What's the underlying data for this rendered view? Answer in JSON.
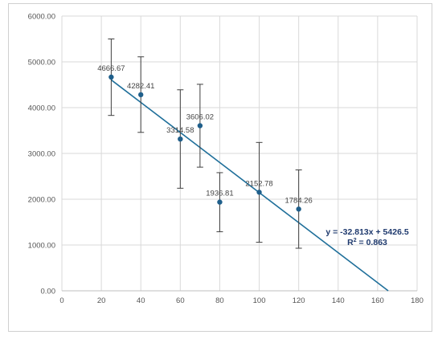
{
  "chart_data": {
    "type": "scatter",
    "title": "",
    "xlabel": "",
    "ylabel": "",
    "xlim": [
      0,
      180
    ],
    "ylim": [
      0,
      6000
    ],
    "x_ticks": [
      "0",
      "20",
      "40",
      "60",
      "80",
      "100",
      "120",
      "140",
      "160",
      "180"
    ],
    "y_ticks": [
      "0.00",
      "1000.00",
      "2000.00",
      "3000.00",
      "4000.00",
      "5000.00",
      "6000.00"
    ],
    "grid": "vertical and horizontal",
    "points": [
      {
        "x": 25,
        "y": 4666.67,
        "label": "4666.67",
        "err_high": 5500,
        "err_low": 3830
      },
      {
        "x": 40,
        "y": 4282.41,
        "label": "4282.41",
        "err_high": 5110,
        "err_low": 3460
      },
      {
        "x": 60,
        "y": 3314.58,
        "label": "3314.58",
        "err_high": 4390,
        "err_low": 2240
      },
      {
        "x": 70,
        "y": 3606.02,
        "label": "3606.02",
        "err_high": 4510,
        "err_low": 2700
      },
      {
        "x": 80,
        "y": 1936.81,
        "label": "1936.81",
        "err_high": 2580,
        "err_low": 1290
      },
      {
        "x": 100,
        "y": 2152.78,
        "label": "2152.78",
        "err_high": 3240,
        "err_low": 1060
      },
      {
        "x": 120,
        "y": 1784.26,
        "label": "1784.26",
        "err_high": 2640,
        "err_low": 930
      }
    ],
    "trendline": {
      "slope": -32.813,
      "intercept": 5426.5,
      "x_start": 25,
      "equation": "y = -32.813x + 5426.5",
      "r2_prefix": "R",
      "r2_suffix": " = 0.863"
    },
    "colors": {
      "marker": "#1f5f8b",
      "trendline": "#1f6f9a",
      "error_bar": "#404040",
      "grid": "#d9d9d9",
      "axis": "#bfbfbf",
      "equation": "#1f3a6e"
    }
  }
}
